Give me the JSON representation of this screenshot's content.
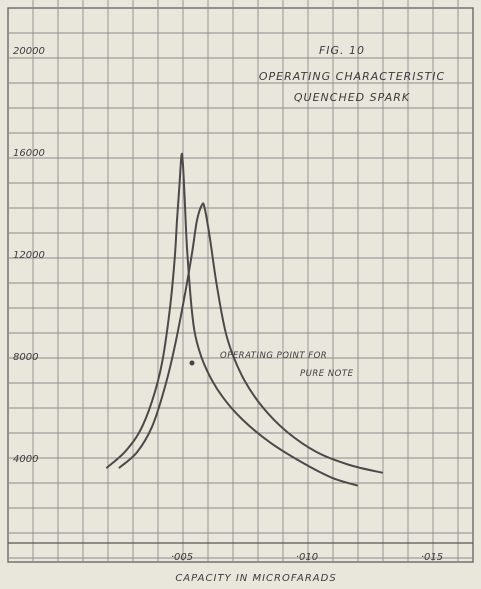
{
  "chart_data": {
    "type": "line",
    "title": "FIG. 10",
    "subtitle_lines": [
      "OPERATING CHARACTERISTIC",
      "QUENCHED SPARK"
    ],
    "xlabel": "CAPACITY IN MICROFARADS",
    "ylabel": "",
    "xlim": [
      -0.0005,
      0.0165
    ],
    "ylim": [
      0,
      22000
    ],
    "x_ticks": [
      {
        "value": 0.005,
        "label": "·005"
      },
      {
        "value": 0.01,
        "label": "·010"
      },
      {
        "value": 0.015,
        "label": "·015"
      }
    ],
    "y_ticks": [
      {
        "value": 4000,
        "label": "4000"
      },
      {
        "value": 8000,
        "label": "8000"
      },
      {
        "value": 12000,
        "label": "12000"
      },
      {
        "value": 16000,
        "label": "16000"
      },
      {
        "value": 20000,
        "label": "20000"
      }
    ],
    "grid": true,
    "series": [
      {
        "color": "#4a4a4a",
        "x": [
          0.002,
          0.0027,
          0.0033,
          0.0038,
          0.0042,
          0.0045,
          0.0047,
          0.0048,
          0.0049,
          0.005,
          0.0051,
          0.0052,
          0.0054,
          0.0056,
          0.006,
          0.0066,
          0.0074,
          0.0085,
          0.0098,
          0.011,
          0.012
        ],
        "y": [
          3900,
          4500,
          5300,
          6500,
          8000,
          10000,
          12000,
          13600,
          15000,
          16200,
          14600,
          12500,
          10000,
          8800,
          7700,
          6700,
          5800,
          4900,
          4100,
          3500,
          3200
        ]
      },
      {
        "color": "#4a4a4a",
        "x": [
          0.0025,
          0.0032,
          0.0038,
          0.0043,
          0.0047,
          0.0051,
          0.0054,
          0.0056,
          0.0058,
          0.0059,
          0.0061,
          0.0064,
          0.0068,
          0.0074,
          0.0082,
          0.0092,
          0.0104,
          0.0117,
          0.013
        ],
        "y": [
          3900,
          4500,
          5500,
          7000,
          8600,
          10600,
          12300,
          13600,
          14200,
          14100,
          13000,
          11000,
          9000,
          7500,
          6300,
          5300,
          4500,
          4000,
          3700
        ]
      }
    ],
    "annotations": [
      {
        "lines": [
          "OPERATING POINT FOR",
          "PURE NOTE"
        ],
        "x": 0.0054,
        "y": 8000
      }
    ]
  }
}
